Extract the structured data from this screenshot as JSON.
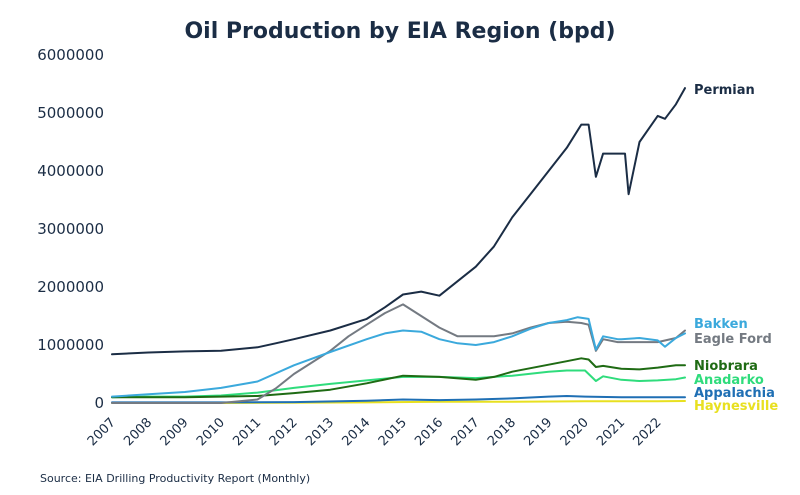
{
  "chart_data": {
    "type": "line",
    "title": "Oil Production by EIA Region (bpd)",
    "source": "Source: EIA Drilling Productivity Report (Monthly)",
    "xlabel": "",
    "ylabel": "",
    "xlim": [
      2007,
      2022.75
    ],
    "ylim": [
      0,
      6000000
    ],
    "y_ticks": [
      0,
      1000000,
      2000000,
      3000000,
      4000000,
      5000000,
      6000000
    ],
    "y_tick_labels": [
      "0",
      "1000000",
      "2000000",
      "3000000",
      "4000000",
      "5000000",
      "6000000"
    ],
    "x_ticks": [
      2007,
      2008,
      2009,
      2010,
      2011,
      2012,
      2013,
      2014,
      2015,
      2016,
      2017,
      2018,
      2019,
      2020,
      2021,
      2022
    ],
    "x_tick_labels": [
      "2007",
      "2008",
      "2009",
      "2010",
      "2011",
      "2012",
      "2013",
      "2014",
      "2015",
      "2016",
      "2017",
      "2018",
      "2019",
      "2020",
      "2021",
      "2022"
    ],
    "grid": false,
    "legend": "labels at line ends (right)",
    "series": [
      {
        "name": "Permian",
        "color": "#1b2d45",
        "x": [
          2007,
          2008,
          2009,
          2010,
          2011,
          2011.5,
          2012,
          2013,
          2014,
          2014.5,
          2015,
          2015.5,
          2016,
          2016.5,
          2017,
          2017.5,
          2018,
          2018.5,
          2019,
          2019.5,
          2019.9,
          2020.1,
          2020.3,
          2020.5,
          2020.9,
          2021.1,
          2021.2,
          2021.5,
          2022,
          2022.2,
          2022.5,
          2022.75
        ],
        "values": [
          840000,
          870000,
          890000,
          900000,
          960000,
          1030000,
          1100000,
          1250000,
          1450000,
          1650000,
          1870000,
          1920000,
          1850000,
          2100000,
          2350000,
          2700000,
          3200000,
          3600000,
          4000000,
          4400000,
          4800000,
          4800000,
          3900000,
          4300000,
          4300000,
          4300000,
          3600000,
          4500000,
          4950000,
          4900000,
          5150000,
          5430000
        ]
      },
      {
        "name": "Bakken",
        "color": "#3ba9dc",
        "x": [
          2007,
          2008,
          2009,
          2010,
          2011,
          2012,
          2013,
          2014,
          2014.5,
          2015,
          2015.5,
          2016,
          2016.5,
          2017,
          2017.5,
          2018,
          2018.5,
          2019,
          2019.5,
          2019.8,
          2020.1,
          2020.3,
          2020.5,
          2020.9,
          2021,
          2021.5,
          2022,
          2022.2,
          2022.5,
          2022.75
        ],
        "values": [
          110000,
          150000,
          190000,
          260000,
          370000,
          650000,
          880000,
          1100000,
          1200000,
          1250000,
          1230000,
          1100000,
          1030000,
          1000000,
          1050000,
          1150000,
          1280000,
          1380000,
          1430000,
          1480000,
          1450000,
          920000,
          1150000,
          1100000,
          1100000,
          1120000,
          1080000,
          970000,
          1120000,
          1200000
        ]
      },
      {
        "name": "Eagle Ford",
        "color": "#747a82",
        "x": [
          2007,
          2008,
          2009,
          2010,
          2011,
          2011.5,
          2012,
          2012.5,
          2013,
          2013.5,
          2014,
          2014.5,
          2015,
          2015.5,
          2016,
          2016.5,
          2017,
          2017.5,
          2018,
          2018.5,
          2019,
          2019.5,
          2019.9,
          2020.1,
          2020.3,
          2020.5,
          2020.9,
          2021,
          2021.5,
          2022,
          2022.5,
          2022.75
        ],
        "values": [
          0,
          0,
          0,
          0,
          60000,
          250000,
          500000,
          700000,
          900000,
          1150000,
          1350000,
          1550000,
          1700000,
          1500000,
          1300000,
          1150000,
          1150000,
          1150000,
          1200000,
          1300000,
          1380000,
          1400000,
          1380000,
          1350000,
          900000,
          1100000,
          1050000,
          1050000,
          1050000,
          1050000,
          1120000,
          1250000
        ]
      },
      {
        "name": "Niobrara",
        "color": "#1f6b14",
        "x": [
          2007,
          2008,
          2009,
          2010,
          2011,
          2012,
          2013,
          2014,
          2015,
          2016,
          2017,
          2017.5,
          2018,
          2018.5,
          2019,
          2019.5,
          2019.9,
          2020.1,
          2020.3,
          2020.5,
          2021,
          2021.5,
          2022,
          2022.5,
          2022.75
        ],
        "values": [
          100000,
          100000,
          100000,
          110000,
          120000,
          170000,
          230000,
          340000,
          470000,
          450000,
          400000,
          450000,
          540000,
          600000,
          660000,
          720000,
          770000,
          750000,
          620000,
          640000,
          590000,
          580000,
          610000,
          650000,
          650000
        ]
      },
      {
        "name": "Anadarko",
        "color": "#2fdc7c",
        "x": [
          2007,
          2008,
          2009,
          2010,
          2011,
          2012,
          2013,
          2014,
          2015,
          2016,
          2017,
          2018,
          2019,
          2019.5,
          2020,
          2020.3,
          2020.5,
          2021,
          2021.5,
          2022,
          2022.5,
          2022.75
        ],
        "values": [
          100000,
          110000,
          110000,
          130000,
          180000,
          260000,
          330000,
          390000,
          450000,
          450000,
          430000,
          470000,
          540000,
          560000,
          560000,
          380000,
          460000,
          400000,
          380000,
          390000,
          410000,
          440000
        ]
      },
      {
        "name": "Appalachia",
        "color": "#1f6fb4",
        "x": [
          2007,
          2010,
          2012,
          2014,
          2015,
          2016,
          2017,
          2018,
          2019,
          2019.5,
          2020,
          2021,
          2022,
          2022.75
        ],
        "values": [
          10000,
          10000,
          15000,
          40000,
          60000,
          50000,
          60000,
          80000,
          110000,
          120000,
          110000,
          100000,
          100000,
          100000
        ]
      },
      {
        "name": "Haynesville",
        "color": "#e8e020",
        "x": [
          2007,
          2010,
          2014,
          2016,
          2018,
          2020,
          2022,
          2022.75
        ],
        "values": [
          0,
          0,
          10000,
          20000,
          20000,
          30000,
          30000,
          35000
        ]
      }
    ]
  }
}
